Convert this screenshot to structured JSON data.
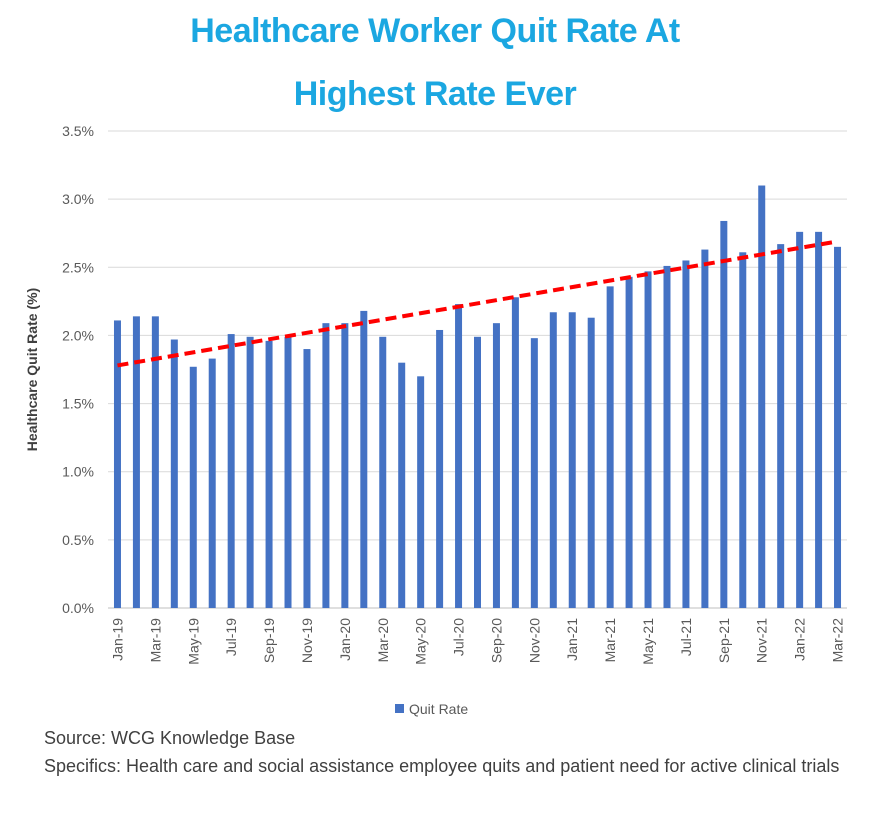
{
  "title_line1": "Healthcare Worker Quit Rate At",
  "title_line2": "Highest Rate Ever",
  "source": "Source: WCG Knowledge Base",
  "specifics": "Specifics: Health care and social assistance employee quits and patient need for active clinical trials",
  "colors": {
    "title": "#1ba7e1",
    "bar": "#4472c4",
    "trend": "#ff0000",
    "grid": "#d9d9d9"
  },
  "chart_data": {
    "type": "bar",
    "ylabel": "Healthcare Quit Rate (%)",
    "xlabel": "",
    "ylim": [
      0,
      3.5
    ],
    "yticks": [
      "0.0%",
      "0.5%",
      "1.0%",
      "1.5%",
      "2.0%",
      "2.5%",
      "3.0%",
      "3.5%"
    ],
    "ytick_values": [
      0,
      0.5,
      1.0,
      1.5,
      2.0,
      2.5,
      3.0,
      3.5
    ],
    "grid": true,
    "legend": "bottom",
    "x_tick_labels": [
      "Jan-19",
      "Mar-19",
      "May-19",
      "Jul-19",
      "Sep-19",
      "Nov-19",
      "Jan-20",
      "Mar-20",
      "May-20",
      "Jul-20",
      "Sep-20",
      "Nov-20",
      "Jan-21",
      "Mar-21",
      "May-21",
      "Jul-21",
      "Sep-21",
      "Nov-21",
      "Jan-22",
      "Mar-22"
    ],
    "categories": [
      "Jan-19",
      "Feb-19",
      "Mar-19",
      "Apr-19",
      "May-19",
      "Jun-19",
      "Jul-19",
      "Aug-19",
      "Sep-19",
      "Oct-19",
      "Nov-19",
      "Dec-19",
      "Jan-20",
      "Feb-20",
      "Mar-20",
      "Apr-20",
      "May-20",
      "Jun-20",
      "Jul-20",
      "Aug-20",
      "Sep-20",
      "Oct-20",
      "Nov-20",
      "Dec-20",
      "Jan-21",
      "Feb-21",
      "Mar-21",
      "Apr-21",
      "May-21",
      "Jun-21",
      "Jul-21",
      "Aug-21",
      "Sep-21",
      "Oct-21",
      "Nov-21",
      "Dec-21",
      "Jan-22",
      "Feb-22",
      "Mar-22"
    ],
    "series": [
      {
        "name": "Quit Rate",
        "values": [
          2.11,
          2.14,
          2.14,
          1.97,
          1.77,
          1.83,
          2.01,
          1.99,
          1.96,
          1.99,
          1.9,
          2.09,
          2.09,
          2.18,
          1.99,
          1.8,
          1.7,
          2.04,
          2.23,
          1.99,
          2.09,
          2.28,
          1.98,
          2.17,
          2.17,
          2.13,
          2.36,
          2.43,
          2.47,
          2.51,
          2.55,
          2.63,
          2.84,
          2.61,
          3.1,
          2.67,
          2.76,
          2.76,
          2.65
        ]
      }
    ],
    "trendline": {
      "start": 1.78,
      "end": 2.69
    }
  }
}
